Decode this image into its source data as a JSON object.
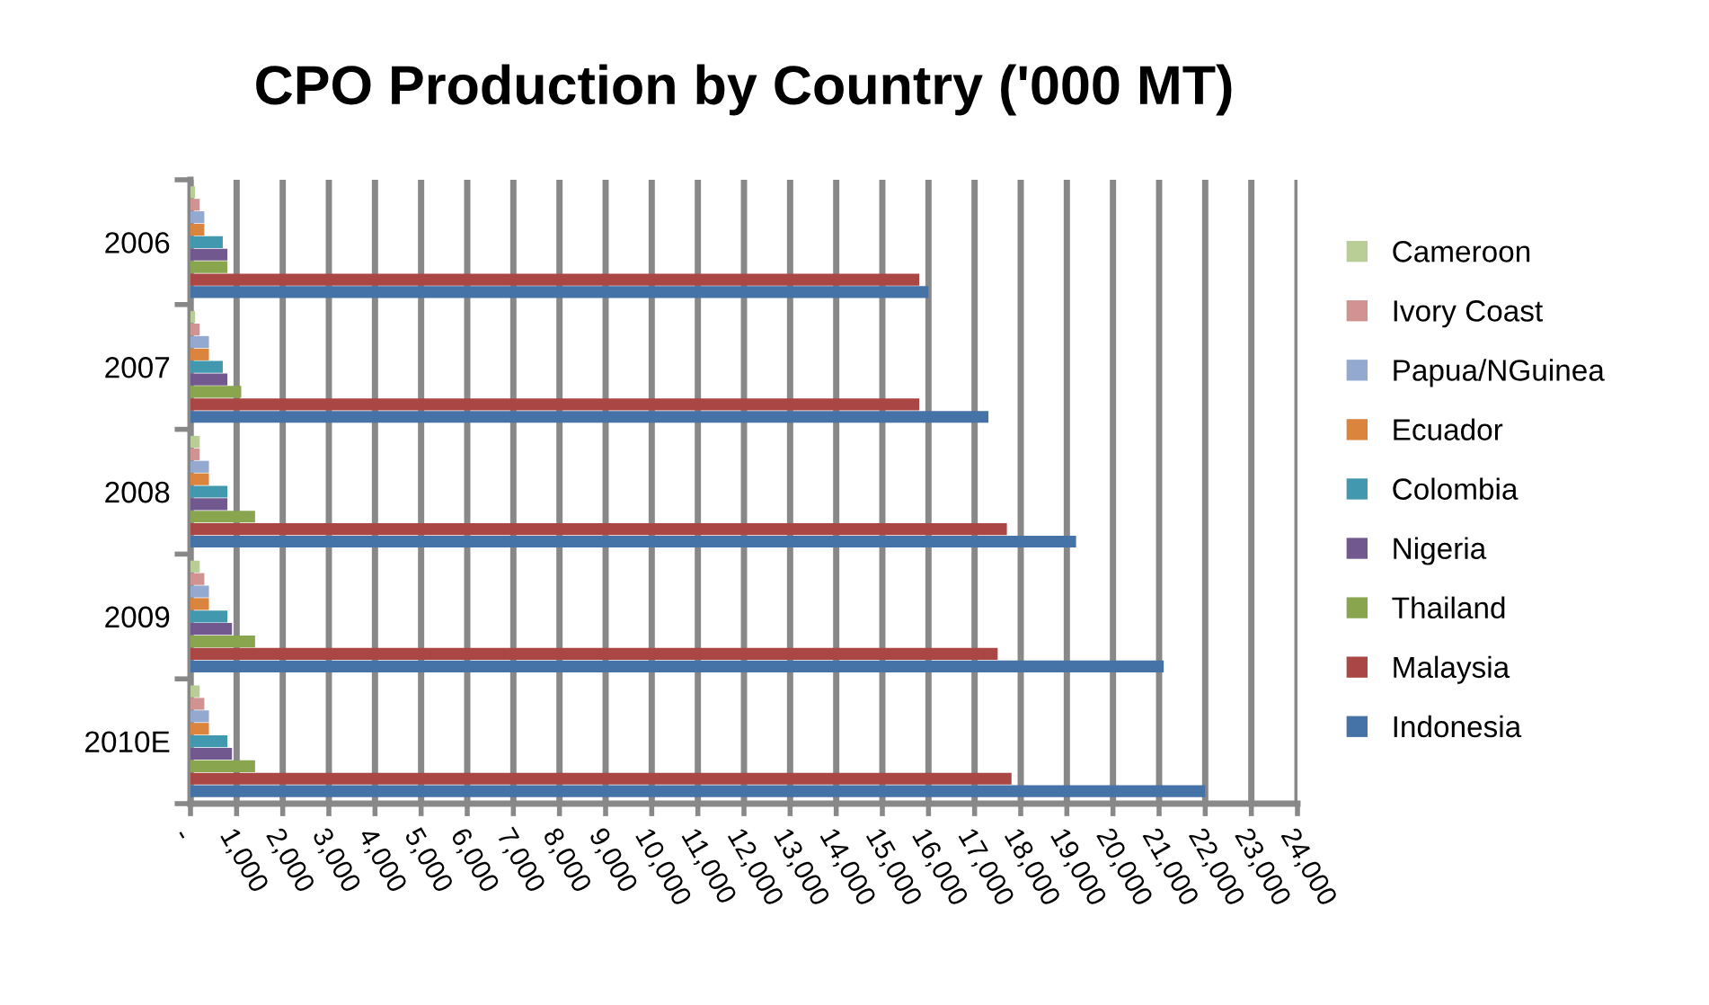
{
  "chart_data": {
    "type": "bar",
    "orientation": "horizontal",
    "title": "CPO Production by Country ('000 MT)",
    "categories": [
      "2006",
      "2007",
      "2008",
      "2009",
      "2010E"
    ],
    "series": [
      {
        "name": "Indonesia",
        "color": "#4572a7",
        "values": [
          16000,
          17300,
          19200,
          21100,
          22000
        ]
      },
      {
        "name": "Malaysia",
        "color": "#aa4643",
        "values": [
          15800,
          15800,
          17700,
          17500,
          17800
        ]
      },
      {
        "name": "Thailand",
        "color": "#89a54e",
        "values": [
          800,
          1100,
          1400,
          1400,
          1400
        ]
      },
      {
        "name": "Nigeria",
        "color": "#71588f",
        "values": [
          800,
          800,
          800,
          900,
          900
        ]
      },
      {
        "name": "Colombia",
        "color": "#4198af",
        "values": [
          700,
          700,
          800,
          800,
          800
        ]
      },
      {
        "name": "Ecuador",
        "color": "#db843d",
        "values": [
          300,
          400,
          400,
          400,
          400
        ]
      },
      {
        "name": "Papua/NGuinea",
        "color": "#93a9cf",
        "values": [
          300,
          400,
          400,
          400,
          400
        ]
      },
      {
        "name": "Ivory Coast",
        "color": "#d19392",
        "values": [
          200,
          200,
          200,
          300,
          300
        ]
      },
      {
        "name": "Cameroon",
        "color": "#b9cd96",
        "values": [
          100,
          100,
          200,
          200,
          200
        ]
      }
    ],
    "xlim": [
      0,
      24000
    ],
    "xticks": [
      {
        "value": 0,
        "label": "-"
      },
      {
        "value": 1000,
        "label": "1,000"
      },
      {
        "value": 2000,
        "label": "2,000"
      },
      {
        "value": 3000,
        "label": "3,000"
      },
      {
        "value": 4000,
        "label": "4,000"
      },
      {
        "value": 5000,
        "label": "5,000"
      },
      {
        "value": 6000,
        "label": "6,000"
      },
      {
        "value": 7000,
        "label": "7,000"
      },
      {
        "value": 8000,
        "label": "8,000"
      },
      {
        "value": 9000,
        "label": "9,000"
      },
      {
        "value": 10000,
        "label": "10,000"
      },
      {
        "value": 11000,
        "label": "11,000"
      },
      {
        "value": 12000,
        "label": "12,000"
      },
      {
        "value": 13000,
        "label": "13,000"
      },
      {
        "value": 14000,
        "label": "14,000"
      },
      {
        "value": 15000,
        "label": "15,000"
      },
      {
        "value": 16000,
        "label": "16,000"
      },
      {
        "value": 17000,
        "label": "17,000"
      },
      {
        "value": 18000,
        "label": "18,000"
      },
      {
        "value": 19000,
        "label": "19,000"
      },
      {
        "value": 20000,
        "label": "20,000"
      },
      {
        "value": 21000,
        "label": "21,000"
      },
      {
        "value": 22000,
        "label": "22,000"
      },
      {
        "value": 23000,
        "label": "23,000"
      },
      {
        "value": 24000,
        "label": "24,000"
      }
    ],
    "grid": "x",
    "legend": "right"
  }
}
